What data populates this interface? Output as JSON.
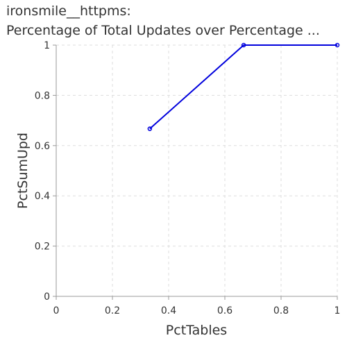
{
  "chart_data": {
    "type": "line",
    "title_lines": [
      "ironsmile__httpms:",
      "Percentage of Total Updates over Percentage ..."
    ],
    "xlabel": "PctTables",
    "ylabel": "PctSumUpd",
    "xlim": [
      0,
      1
    ],
    "ylim": [
      0,
      1
    ],
    "x_ticks": [
      {
        "value": 0,
        "label": "0"
      },
      {
        "value": 0.2,
        "label": "0.2"
      },
      {
        "value": 0.4,
        "label": "0.4"
      },
      {
        "value": 0.6,
        "label": "0.6"
      },
      {
        "value": 0.8,
        "label": "0.8"
      },
      {
        "value": 1,
        "label": "1"
      }
    ],
    "y_ticks": [
      {
        "value": 0,
        "label": "0"
      },
      {
        "value": 0.2,
        "label": "0.2"
      },
      {
        "value": 0.4,
        "label": "0.4"
      },
      {
        "value": 0.6,
        "label": "0.6"
      },
      {
        "value": 0.8,
        "label": "0.8"
      },
      {
        "value": 1,
        "label": "1"
      }
    ],
    "grid": true,
    "series": [
      {
        "color": "#0000dd",
        "points": [
          {
            "x": 0.333,
            "y": 0.667
          },
          {
            "x": 0.667,
            "y": 1.0
          },
          {
            "x": 1.0,
            "y": 1.0
          }
        ]
      }
    ]
  }
}
